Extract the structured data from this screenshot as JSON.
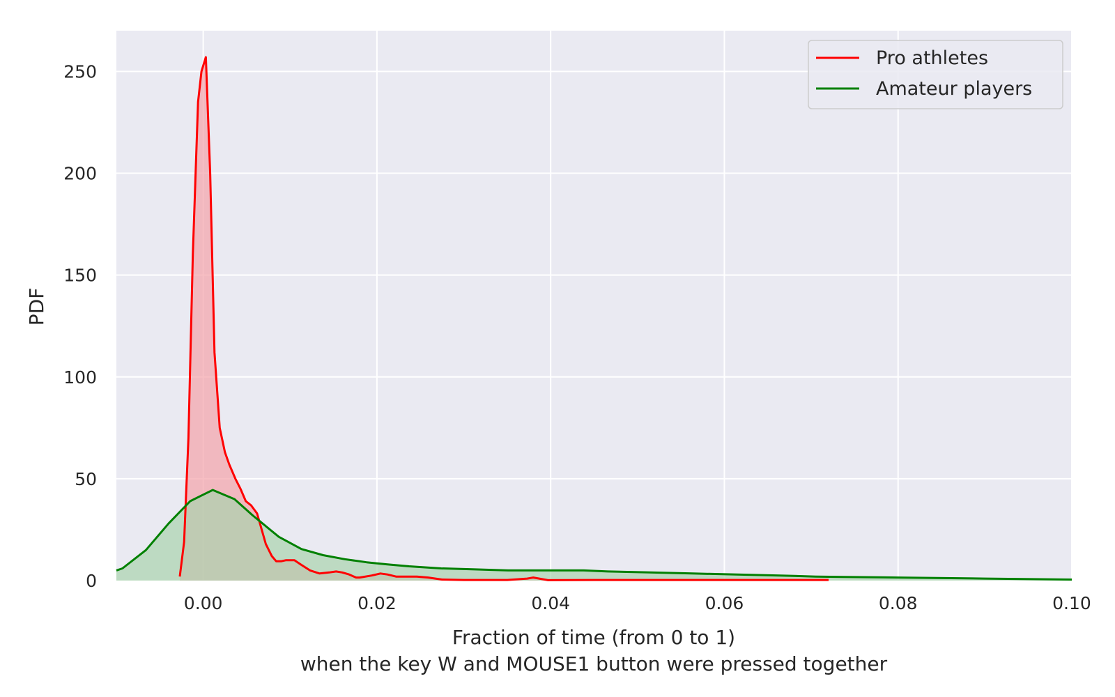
{
  "chart_data": {
    "type": "area",
    "xlabel": "Fraction of time (from 0 to 1)",
    "xlabel_line2": "when the key W and MOUSE1 button were pressed together",
    "ylabel": "PDF",
    "xlim": [
      -0.01,
      0.1
    ],
    "ylim": [
      0,
      270
    ],
    "x_ticks": [
      0.0,
      0.02,
      0.04,
      0.06,
      0.08,
      0.1
    ],
    "x_tick_labels": [
      "0.00",
      "0.02",
      "0.04",
      "0.06",
      "0.08",
      "0.10"
    ],
    "y_ticks": [
      0,
      50,
      100,
      150,
      200,
      250
    ],
    "y_tick_labels": [
      "0",
      "50",
      "100",
      "150",
      "200",
      "250"
    ],
    "grid": true,
    "legend_position": "top-right",
    "series": [
      {
        "name": "Pro athletes",
        "color": "#ff0000",
        "fill": "#f4a3aa",
        "x": [
          -0.0027,
          -0.0022,
          -0.0017,
          -0.0012,
          -0.0006,
          -0.0002,
          0.0003,
          0.0008,
          0.0013,
          0.0019,
          0.0025,
          0.003,
          0.0037,
          0.0043,
          0.0049,
          0.0055,
          0.0062,
          0.0066,
          0.0072,
          0.0079,
          0.0084,
          0.009,
          0.0095,
          0.0105,
          0.0112,
          0.0123,
          0.0134,
          0.0145,
          0.0153,
          0.016,
          0.0168,
          0.0176,
          0.018,
          0.0194,
          0.0204,
          0.0212,
          0.0222,
          0.0232,
          0.0246,
          0.0259,
          0.0275,
          0.03,
          0.035,
          0.0373,
          0.038,
          0.0397,
          0.045,
          0.055,
          0.065,
          0.072
        ],
        "y": [
          2,
          19,
          70,
          160,
          235,
          250,
          257,
          200,
          112,
          75,
          63,
          57,
          50,
          45,
          39,
          37,
          33,
          27,
          18,
          12,
          9.5,
          9.5,
          10,
          10,
          8,
          5,
          3.5,
          4,
          4.5,
          4,
          3,
          1.5,
          1.5,
          2.5,
          3.5,
          3,
          2,
          2,
          2,
          1.5,
          0.5,
          0.3,
          0.3,
          1,
          1.5,
          0.2,
          0.3,
          0.3,
          0.3,
          0.3
        ]
      },
      {
        "name": "Amateur players",
        "color": "#008000",
        "fill": "#a9d3ae",
        "x": [
          -0.01,
          -0.0093,
          -0.0066,
          -0.004,
          -0.0015,
          -0.0001,
          0.0011,
          0.0036,
          0.0057,
          0.0087,
          0.0113,
          0.0138,
          0.0163,
          0.0188,
          0.0211,
          0.0237,
          0.0274,
          0.0313,
          0.0351,
          0.04,
          0.0438,
          0.0466,
          0.0514,
          0.0563,
          0.0614,
          0.0664,
          0.0705,
          0.0737,
          0.08,
          0.09,
          0.1
        ],
        "y": [
          5,
          6,
          15,
          28,
          39,
          42,
          44.5,
          40,
          32,
          21.5,
          15.5,
          12.5,
          10.5,
          9,
          8,
          7,
          6,
          5.5,
          5,
          5,
          5,
          4.5,
          4,
          3.5,
          3,
          2.5,
          2,
          1.8,
          1.5,
          1,
          0.5
        ]
      }
    ]
  }
}
